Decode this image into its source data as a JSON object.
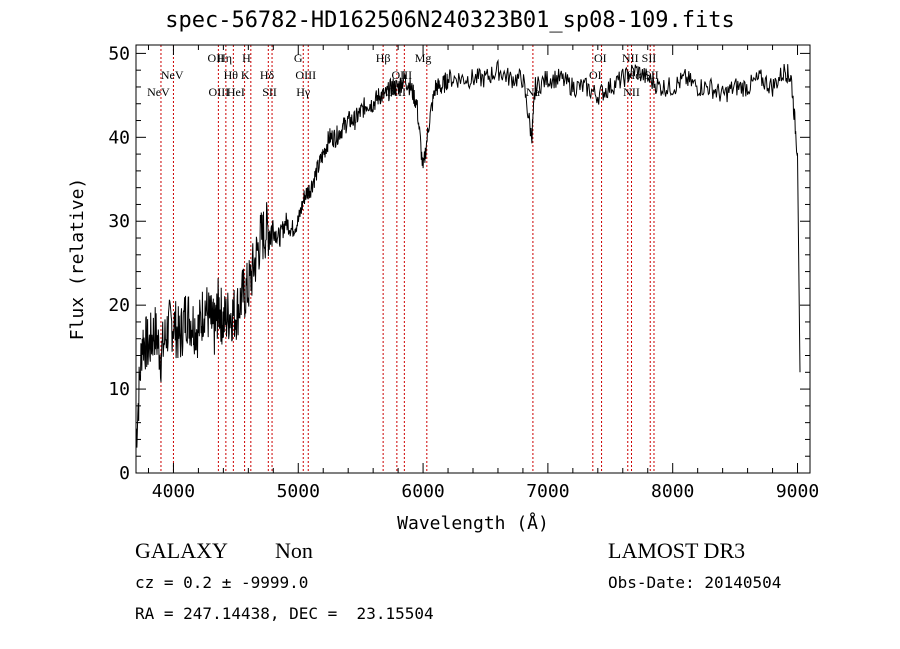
{
  "title": "spec-56782-HD162506N240323B01_sp08-109.fits",
  "footer": {
    "class_label": "GALAXY",
    "subclass_label": "Non",
    "cz_text": "cz = 0.2 ± -9999.0",
    "radec_text": "RA = 247.14438, DEC =  23.15504",
    "survey": "LAMOST DR3",
    "obs_date": "Obs-Date: 20140504"
  },
  "chart_data": {
    "type": "line",
    "title": "spec-56782-HD162506N240323B01_sp08-109.fits",
    "xlabel": "Wavelength (Å)",
    "ylabel": "Flux (relative)",
    "xlim": [
      3700,
      9100
    ],
    "ylim": [
      0,
      51
    ],
    "xticks": [
      4000,
      5000,
      6000,
      7000,
      8000,
      9000
    ],
    "yticks": [
      0,
      10,
      20,
      30,
      40,
      50
    ],
    "line_color": "#000000",
    "marker_color": "#cc0000",
    "spectrum": {
      "x": [
        3700,
        3750,
        3800,
        3850,
        3900,
        3950,
        4000,
        4050,
        4100,
        4150,
        4200,
        4250,
        4300,
        4330,
        4360,
        4400,
        4450,
        4500,
        4550,
        4600,
        4650,
        4700,
        4750,
        4800,
        4850,
        4900,
        4950,
        5000,
        5050,
        5100,
        5150,
        5200,
        5250,
        5300,
        5350,
        5400,
        5450,
        5500,
        5550,
        5600,
        5650,
        5700,
        5750,
        5800,
        5850,
        5900,
        5950,
        6000,
        6050,
        6100,
        6150,
        6200,
        6300,
        6400,
        6500,
        6600,
        6700,
        6800,
        6870,
        6900,
        7000,
        7100,
        7200,
        7300,
        7400,
        7500,
        7600,
        7700,
        7800,
        7900,
        8000,
        8100,
        8200,
        8300,
        8400,
        8500,
        8600,
        8700,
        8800,
        8900,
        8950,
        9000
      ],
      "y": [
        4,
        16,
        15,
        17,
        14,
        17,
        18,
        16,
        19,
        18,
        17,
        20,
        18,
        17,
        20,
        18,
        19,
        19,
        21,
        22,
        25,
        28,
        29,
        29,
        28,
        30,
        29,
        30,
        33,
        34,
        36,
        38,
        40,
        40,
        41,
        42,
        42,
        43,
        44,
        44,
        45,
        45,
        46,
        46,
        47,
        46,
        44,
        36,
        42,
        46,
        46,
        47,
        47,
        47,
        47,
        48,
        47,
        47,
        40,
        46,
        47,
        47,
        46,
        46,
        45,
        46,
        47,
        48,
        47,
        46,
        46,
        47,
        46,
        46,
        45,
        46,
        46,
        47,
        46,
        48,
        47,
        38
      ]
    },
    "lines": [
      {
        "label": "NeV",
        "x": 3880,
        "row": 2
      },
      {
        "label": "NeV",
        "x": 3990,
        "row": 1
      },
      {
        "label": "OII",
        "x": 4340,
        "row": 0
      },
      {
        "label": "OIII",
        "x": 4364,
        "row": 2
      },
      {
        "label": "Hη",
        "x": 4410,
        "row": 0
      },
      {
        "label": "Hθ",
        "x": 4460,
        "row": 1
      },
      {
        "label": "HeI",
        "x": 4500,
        "row": 2
      },
      {
        "label": "H",
        "x": 4585,
        "row": 0
      },
      {
        "label": "K",
        "x": 4575,
        "row": 1
      },
      {
        "label": "Hδ",
        "x": 4750,
        "row": 1
      },
      {
        "label": "SII",
        "x": 4770,
        "row": 2
      },
      {
        "label": "G",
        "x": 5000,
        "row": 0
      },
      {
        "label": "OIII",
        "x": 5060,
        "row": 1
      },
      {
        "label": "Hγ",
        "x": 5040,
        "row": 2
      },
      {
        "label": "Hβ",
        "x": 5680,
        "row": 0
      },
      {
        "label": "OIII",
        "x": 5830,
        "row": 1
      },
      {
        "label": "OIII",
        "x": 5780,
        "row": 2
      },
      {
        "label": "Mg",
        "x": 6000,
        "row": 0
      },
      {
        "label": "Na",
        "x": 6880,
        "row": 2
      },
      {
        "label": "OI",
        "x": 7420,
        "row": 0
      },
      {
        "label": "OI",
        "x": 7380,
        "row": 1
      },
      {
        "label": "NII",
        "x": 7660,
        "row": 0
      },
      {
        "label": "Hα",
        "x": 7690,
        "row": 1
      },
      {
        "label": "NII",
        "x": 7670,
        "row": 2
      },
      {
        "label": "SII",
        "x": 7810,
        "row": 0
      },
      {
        "label": "SII",
        "x": 7830,
        "row": 1
      }
    ],
    "marker_positions": [
      3900,
      4000,
      4360,
      4420,
      4480,
      4570,
      4620,
      4760,
      4790,
      5040,
      5080,
      5680,
      5790,
      5850,
      6030,
      6880,
      7360,
      7430,
      7640,
      7670,
      7820,
      7850
    ]
  }
}
